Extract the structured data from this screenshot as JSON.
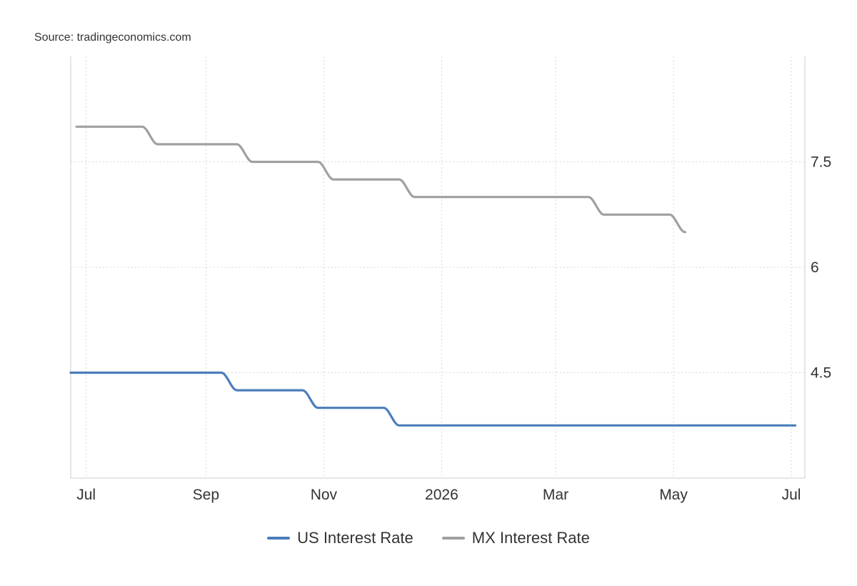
{
  "source_text": "Source: tradingeconomics.com",
  "colors": {
    "us": "#4a7ebb",
    "mx": "#a0a0a0",
    "grid": "#d9d9d9",
    "axis": "#cccccc"
  },
  "chart_data": {
    "type": "line",
    "title": "",
    "xlabel": "",
    "ylabel": "",
    "x_axis": {
      "type": "date",
      "range": [
        "2025-06-23",
        "2026-07-08"
      ],
      "ticks": [
        {
          "date": "2025-07-01",
          "label": "Jul"
        },
        {
          "date": "2025-09-01",
          "label": "Sep"
        },
        {
          "date": "2025-11-01",
          "label": "Nov"
        },
        {
          "date": "2026-01-01",
          "label": "2026"
        },
        {
          "date": "2026-03-01",
          "label": "Mar"
        },
        {
          "date": "2026-05-01",
          "label": "May"
        },
        {
          "date": "2026-07-01",
          "label": "Jul"
        }
      ]
    },
    "y_axis": {
      "range": [
        3.0,
        9.0
      ],
      "ticks": [
        4.5,
        6,
        7.5
      ],
      "tick_labels": [
        "4.5",
        "6",
        "7.5"
      ],
      "position": "right"
    },
    "grid": true,
    "legend_position": "bottom-center",
    "series": [
      {
        "name": "US Interest Rate",
        "color": "#4a7ebb",
        "points": [
          [
            "2025-06-23",
            4.5
          ],
          [
            "2025-08-31",
            4.5
          ],
          [
            "2025-09-17",
            4.25
          ],
          [
            "2025-10-29",
            4.0
          ],
          [
            "2025-12-10",
            3.75
          ],
          [
            "2026-07-03",
            3.75
          ]
        ]
      },
      {
        "name": "MX Interest Rate",
        "color": "#a0a0a0",
        "points": [
          [
            "2025-06-26",
            8.0
          ],
          [
            "2025-08-07",
            7.75
          ],
          [
            "2025-09-25",
            7.5
          ],
          [
            "2025-11-06",
            7.25
          ],
          [
            "2025-12-18",
            7.0
          ],
          [
            "2026-03-26",
            6.75
          ],
          [
            "2026-05-07",
            6.5
          ]
        ]
      }
    ]
  }
}
